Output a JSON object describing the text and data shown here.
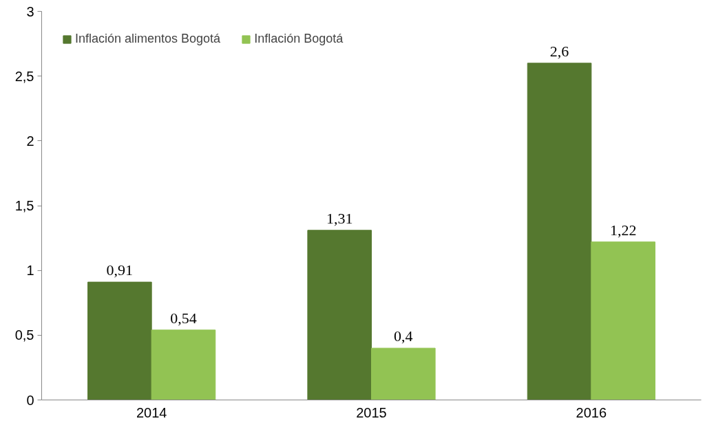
{
  "chart_data": {
    "type": "bar",
    "categories": [
      "2014",
      "2015",
      "2016"
    ],
    "series": [
      {
        "name": "Inflación alimentos Bogotá",
        "color": "#55782f",
        "values": [
          0.91,
          1.31,
          2.6
        ],
        "value_labels": [
          "0,91",
          "1,31",
          "2,6"
        ]
      },
      {
        "name": "Inflación Bogotá",
        "color": "#92c353",
        "values": [
          0.54,
          0.4,
          1.22
        ],
        "value_labels": [
          "0,54",
          "0,4",
          "1,22"
        ]
      }
    ],
    "ylim": [
      0,
      3
    ],
    "yticks": [
      0,
      {
        "value": 0.5,
        "label": "0,5"
      },
      1,
      {
        "value": 1.5,
        "label": "1,5"
      },
      2,
      {
        "value": 2.5,
        "label": "2,5"
      },
      3
    ],
    "grid": false,
    "legend": "top left"
  }
}
